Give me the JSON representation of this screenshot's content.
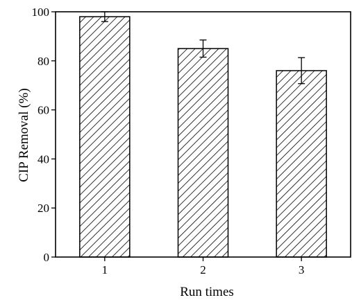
{
  "chart_data": {
    "type": "bar",
    "categories": [
      "1",
      "2",
      "3"
    ],
    "values": [
      98.0,
      85.0,
      76.0
    ],
    "errors": [
      2.0,
      3.5,
      5.3
    ],
    "xlabel": "Run times",
    "ylabel": "CIP Removal (%)",
    "ylim": [
      0,
      100
    ],
    "yticks": [
      0,
      20,
      40,
      60,
      80,
      100
    ],
    "grid": false,
    "bar_fill": "hatched",
    "colors": {
      "bar_edge": "#000000",
      "hatch": "#000000",
      "background": "#ffffff"
    }
  }
}
